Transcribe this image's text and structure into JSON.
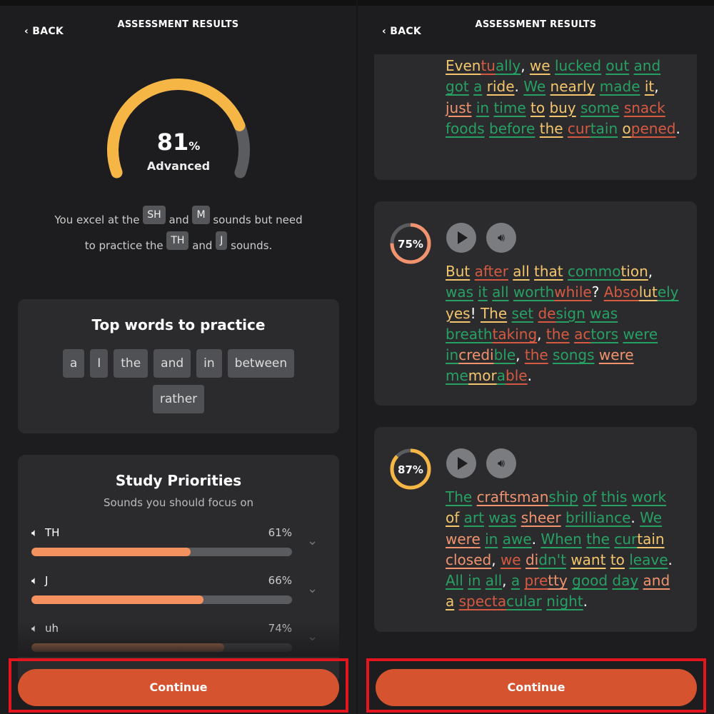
{
  "header": {
    "back": "BACK",
    "title": "ASSESSMENT RESULTS"
  },
  "colors": {
    "g": "#27a064",
    "y": "#f3c56c",
    "o": "#f0936e",
    "r": "#d65a42",
    "w": "#ffffff",
    "accent": "#d6532f",
    "gauge": "#f6b646"
  },
  "score": {
    "value": 81,
    "unit": "%",
    "level": "Advanced"
  },
  "summary": {
    "t1": "You excel at the",
    "s1": "SH",
    "t2": "and",
    "s2": "M",
    "t3": "sounds but need",
    "t4": "to practice the",
    "s3": "TH",
    "t5": "and",
    "s4": "J",
    "t6": "sounds."
  },
  "top_words": {
    "title": "Top words to practice",
    "items": [
      "a",
      "I",
      "the",
      "and",
      "in",
      "between",
      "rather"
    ]
  },
  "study": {
    "title": "Study Priorities",
    "subtitle": "Sounds you should focus on",
    "items": [
      {
        "sound": "TH",
        "pct": 61,
        "label": "61%"
      },
      {
        "sound": "J",
        "pct": 66,
        "label": "66%"
      },
      {
        "sound": "uh",
        "pct": 74,
        "label": "74%"
      }
    ]
  },
  "continue": "Continue",
  "passages": [
    {
      "score": null,
      "words": [
        [
          [
            "Even",
            "y"
          ],
          [
            "tu",
            "r"
          ],
          [
            "ally",
            "g"
          ],
          [
            ",",
            "w"
          ]
        ],
        [
          [
            "we",
            "y"
          ]
        ],
        [
          [
            "lucked",
            "g"
          ]
        ],
        [
          [
            "out",
            "g"
          ]
        ],
        [
          [
            "and",
            "g"
          ]
        ],
        [
          [
            "got",
            "g"
          ]
        ],
        [
          [
            "a",
            "g"
          ]
        ],
        [
          [
            "ride",
            "y"
          ],
          [
            ".",
            "w"
          ]
        ],
        [
          [
            "We",
            "g"
          ]
        ],
        [
          [
            "nearly",
            "y"
          ]
        ],
        [
          [
            "made",
            "g"
          ]
        ],
        [
          [
            "it",
            "y"
          ],
          [
            ",",
            "w"
          ]
        ],
        [
          [
            "just",
            "o"
          ]
        ],
        [
          [
            "in",
            "g"
          ]
        ],
        [
          [
            "time",
            "g"
          ]
        ],
        [
          [
            "to",
            "y"
          ]
        ],
        [
          [
            "buy",
            "y"
          ]
        ],
        [
          [
            "some",
            "g"
          ]
        ],
        [
          [
            "snack",
            "r"
          ]
        ],
        [
          [
            "foods",
            "g"
          ]
        ],
        [
          [
            "before",
            "g"
          ]
        ],
        [
          [
            "the",
            "y"
          ]
        ],
        [
          [
            "cur",
            "r"
          ],
          [
            "tain",
            "g"
          ]
        ],
        [
          [
            "o",
            "y"
          ],
          [
            "pened",
            "r"
          ],
          [
            ".",
            "w"
          ]
        ]
      ]
    },
    {
      "score": 75,
      "label": "75%",
      "words": [
        [
          [
            "But",
            "y"
          ]
        ],
        [
          [
            "after",
            "r"
          ]
        ],
        [
          [
            "all",
            "y"
          ]
        ],
        [
          [
            "that",
            "y"
          ]
        ],
        [
          [
            "commo",
            "g"
          ],
          [
            "tion",
            "y"
          ],
          [
            ",",
            "w"
          ]
        ],
        [
          [
            "was",
            "g"
          ]
        ],
        [
          [
            "it",
            "g"
          ]
        ],
        [
          [
            "all",
            "g"
          ]
        ],
        [
          [
            "worth",
            "g"
          ],
          [
            "while",
            "r"
          ],
          [
            "?",
            "w"
          ]
        ],
        [
          [
            "Abso",
            "r"
          ],
          [
            "lut",
            "y"
          ],
          [
            "ely",
            "g"
          ]
        ],
        [
          [
            "yes",
            "y"
          ],
          [
            "!",
            "w"
          ]
        ],
        [
          [
            "The",
            "y"
          ]
        ],
        [
          [
            "set",
            "g"
          ]
        ],
        [
          [
            "de",
            "r"
          ],
          [
            "sign",
            "g"
          ]
        ],
        [
          [
            "was",
            "g"
          ]
        ],
        [
          [
            "breath",
            "g"
          ],
          [
            "taking",
            "r"
          ],
          [
            ",",
            "w"
          ]
        ],
        [
          [
            "the",
            "r"
          ]
        ],
        [
          [
            "ac",
            "r"
          ],
          [
            "tors",
            "g"
          ]
        ],
        [
          [
            "were",
            "g"
          ]
        ],
        [
          [
            "in",
            "g"
          ],
          [
            "credi",
            "o"
          ],
          [
            "ble",
            "g"
          ],
          [
            ",",
            "w"
          ]
        ],
        [
          [
            "the",
            "r"
          ]
        ],
        [
          [
            "songs",
            "g"
          ]
        ],
        [
          [
            "were",
            "o"
          ]
        ],
        [
          [
            "me",
            "g"
          ],
          [
            "mor",
            "y"
          ],
          [
            "a",
            "g"
          ],
          [
            "ble",
            "r"
          ],
          [
            ".",
            "w"
          ]
        ]
      ]
    },
    {
      "score": 87,
      "label": "87%",
      "words": [
        [
          [
            "The",
            "g"
          ]
        ],
        [
          [
            "craftsman",
            "o"
          ],
          [
            "ship",
            "g"
          ]
        ],
        [
          [
            "of",
            "g"
          ]
        ],
        [
          [
            "this",
            "g"
          ]
        ],
        [
          [
            "work",
            "g"
          ]
        ],
        [
          [
            "of",
            "y"
          ]
        ],
        [
          [
            "art",
            "g"
          ]
        ],
        [
          [
            "was",
            "g"
          ]
        ],
        [
          [
            "sheer",
            "o"
          ]
        ],
        [
          [
            "brilliance",
            "g"
          ],
          [
            ".",
            "w"
          ]
        ],
        [
          [
            "We",
            "g"
          ]
        ],
        [
          [
            "were",
            "o"
          ]
        ],
        [
          [
            "in",
            "g"
          ]
        ],
        [
          [
            "awe",
            "g"
          ],
          [
            ".",
            "w"
          ]
        ],
        [
          [
            "When",
            "g"
          ]
        ],
        [
          [
            "the",
            "g"
          ]
        ],
        [
          [
            "cur",
            "g"
          ],
          [
            "tain",
            "y"
          ]
        ],
        [
          [
            "closed",
            "o"
          ],
          [
            ",",
            "w"
          ]
        ],
        [
          [
            "we",
            "r"
          ]
        ],
        [
          [
            "di",
            "o"
          ],
          [
            "dn't",
            "g"
          ]
        ],
        [
          [
            "want",
            "y"
          ]
        ],
        [
          [
            "to",
            "y"
          ]
        ],
        [
          [
            "leave",
            "g"
          ],
          [
            ".",
            "w"
          ]
        ],
        [
          [
            "All",
            "g"
          ]
        ],
        [
          [
            "in",
            "g"
          ]
        ],
        [
          [
            "all",
            "g"
          ],
          [
            ",",
            "w"
          ]
        ],
        [
          [
            "a",
            "g"
          ]
        ],
        [
          [
            "pre",
            "r"
          ],
          [
            "tty",
            "o"
          ]
        ],
        [
          [
            "good",
            "g"
          ]
        ],
        [
          [
            "day",
            "g"
          ]
        ],
        [
          [
            "and",
            "o"
          ]
        ],
        [
          [
            "a",
            "y"
          ]
        ],
        [
          [
            "specta",
            "r"
          ],
          [
            "cular",
            "g"
          ]
        ],
        [
          [
            "night",
            "g"
          ],
          [
            ".",
            "w"
          ]
        ]
      ]
    }
  ]
}
